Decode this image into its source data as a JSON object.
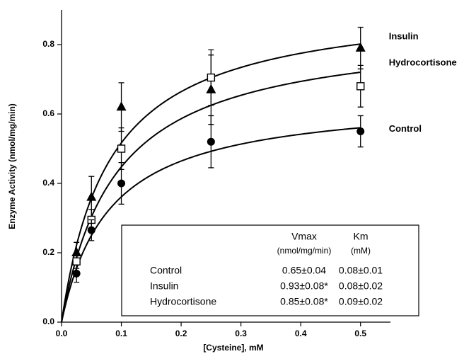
{
  "chart_data": {
    "type": "scatter",
    "xlabel": "[Cysteine],  mM",
    "ylabel": "Enzyme  Activity  (nmol/mg/min)",
    "x": [
      0.025,
      0.05,
      0.1,
      0.25,
      0.5
    ],
    "xlim": [
      0,
      0.55
    ],
    "ylim": [
      0,
      0.9
    ],
    "xticks": [
      {
        "value": 0,
        "label": "0.0"
      },
      0.1,
      0.2,
      0.3,
      0.4,
      0.5
    ],
    "yticks": [
      {
        "value": 0,
        "label": "0.0"
      },
      0.2,
      0.4,
      0.6,
      0.8
    ],
    "series": [
      {
        "name": "Insulin",
        "marker": "triangle",
        "color": "#000000",
        "vmax": 0.93,
        "km": 0.08,
        "values": [
          0.2,
          0.36,
          0.62,
          0.67,
          0.79
        ],
        "errors": [
          0.03,
          0.06,
          0.07,
          0.1,
          0.06
        ]
      },
      {
        "name": "Hydrocortisone",
        "marker": "open-square",
        "color": "#000000",
        "vmax": 0.85,
        "km": 0.09,
        "values": [
          0.175,
          0.295,
          0.5,
          0.705,
          0.68
        ],
        "errors": [
          0.02,
          0.03,
          0.06,
          0.08,
          0.06
        ]
      },
      {
        "name": "Control",
        "marker": "circle",
        "color": "#000000",
        "vmax": 0.65,
        "km": 0.08,
        "values": [
          0.14,
          0.265,
          0.4,
          0.52,
          0.55
        ],
        "errors": [
          0.025,
          0.03,
          0.06,
          0.075,
          0.045
        ]
      }
    ],
    "table": {
      "headers": [
        [
          "Vmax",
          "(nmol/mg/min)"
        ],
        [
          "Km",
          "(mM)"
        ]
      ],
      "rows": [
        [
          "Control",
          "0.65±0.04",
          "0.08±0.01"
        ],
        [
          "Insulin",
          "0.93±0.08*",
          "0.08±0.02"
        ],
        [
          "Hydrocortisone",
          "0.85±0.08*",
          "0.09±0.02"
        ]
      ]
    }
  }
}
